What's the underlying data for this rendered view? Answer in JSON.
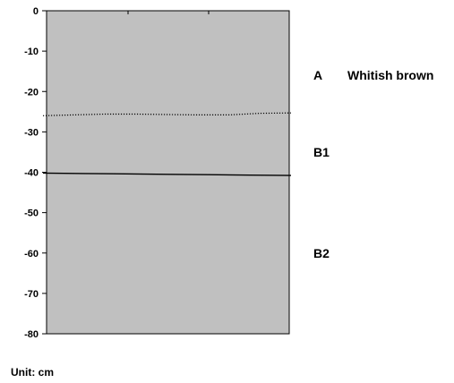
{
  "profile": {
    "colors": {
      "panel_fill": "#c0c0c0",
      "line": "#000000",
      "text": "#000000"
    },
    "depth_axis": {
      "min": -80,
      "max": 0,
      "ticks": [
        {
          "value": 0,
          "label": "0"
        },
        {
          "value": -10,
          "label": "-10"
        },
        {
          "value": -20,
          "label": "-20"
        },
        {
          "value": -30,
          "label": "-30"
        },
        {
          "value": -40,
          "label": "-40"
        },
        {
          "value": -50,
          "label": "-50"
        },
        {
          "value": -60,
          "label": "-60"
        },
        {
          "value": -70,
          "label": "-70"
        },
        {
          "value": -80,
          "label": "-80"
        }
      ]
    },
    "boundaries": [
      {
        "style": "dotted",
        "depth_profile": [
          -26,
          -25.8,
          -25.6,
          -25.6,
          -25.7,
          -25.8,
          -25.8,
          -25.4,
          -25.3
        ]
      },
      {
        "style": "solid",
        "depth_profile": [
          -40.2,
          -40.3,
          -40.4,
          -40.5,
          -40.6,
          -40.7,
          -40.8
        ]
      }
    ],
    "horizons": [
      {
        "code": "A",
        "description": "Whitish brown",
        "label_depth": -16
      },
      {
        "code": "B1",
        "description": "",
        "label_depth": -35
      },
      {
        "code": "B2",
        "description": "",
        "label_depth": -60
      }
    ],
    "unit_text": "Unit: cm"
  }
}
